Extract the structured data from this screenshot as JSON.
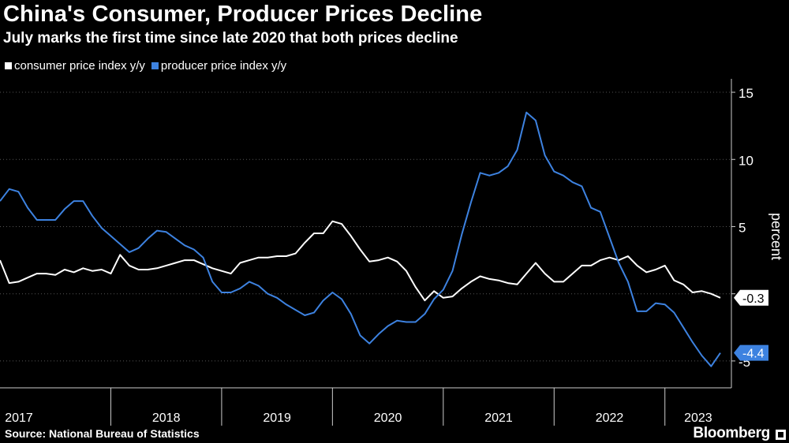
{
  "header": {
    "title": "China's Consumer, Producer Prices Decline",
    "subtitle": "July marks the first time since late 2020 that both prices decline"
  },
  "legend": {
    "cpi_label": "consumer price index y/y",
    "ppi_label": "producer price index y/y"
  },
  "colors": {
    "cpi": "#ffffff",
    "ppi": "#3d82e0",
    "axis": "#cccccc",
    "grid": "#555555",
    "bg": "#000000"
  },
  "footer": {
    "source": "Source: National Bureau of Statistics",
    "brand": "Bloomberg"
  },
  "chart_data": {
    "type": "line",
    "title": "China's Consumer, Producer Prices Decline",
    "ylabel": "percent",
    "ylim": [
      -7,
      16
    ],
    "yticks": [
      -5,
      0,
      5,
      10,
      15
    ],
    "xlim": [
      2017.0,
      2023.6
    ],
    "year_labels": [
      {
        "year": 2017,
        "label": "2017"
      },
      {
        "year": 2018,
        "label": "2018"
      },
      {
        "year": 2019,
        "label": "2019"
      },
      {
        "year": 2020,
        "label": "2020"
      },
      {
        "year": 2021,
        "label": "2021"
      },
      {
        "year": 2022,
        "label": "2022"
      },
      {
        "year": 2023,
        "label": "2023"
      }
    ],
    "start": "2017-01",
    "series": [
      {
        "name": "consumer price index y/y",
        "key": "cpi",
        "last_label": "-0.3",
        "values": [
          2.5,
          0.8,
          0.9,
          1.2,
          1.5,
          1.5,
          1.4,
          1.8,
          1.6,
          1.9,
          1.7,
          1.8,
          1.5,
          2.9,
          2.1,
          1.8,
          1.8,
          1.9,
          2.1,
          2.3,
          2.5,
          2.5,
          2.2,
          1.9,
          1.7,
          1.5,
          2.3,
          2.5,
          2.7,
          2.7,
          2.8,
          2.8,
          3.0,
          3.8,
          4.5,
          4.5,
          5.4,
          5.2,
          4.3,
          3.3,
          2.4,
          2.5,
          2.7,
          2.4,
          1.7,
          0.5,
          -0.5,
          0.2,
          -0.3,
          -0.2,
          0.4,
          0.9,
          1.3,
          1.1,
          1.0,
          0.8,
          0.7,
          1.5,
          2.3,
          1.5,
          0.9,
          0.9,
          1.5,
          2.1,
          2.1,
          2.5,
          2.7,
          2.5,
          2.8,
          2.1,
          1.6,
          1.8,
          2.1,
          1.0,
          0.7,
          0.1,
          0.2,
          0.0,
          -0.3
        ]
      },
      {
        "name": "producer price index y/y",
        "key": "ppi",
        "last_label": "-4.4",
        "values": [
          6.9,
          7.8,
          7.6,
          6.4,
          5.5,
          5.5,
          5.5,
          6.3,
          6.9,
          6.9,
          5.8,
          4.9,
          4.3,
          3.7,
          3.1,
          3.4,
          4.1,
          4.7,
          4.6,
          4.1,
          3.6,
          3.3,
          2.7,
          0.9,
          0.1,
          0.1,
          0.4,
          0.9,
          0.6,
          0.0,
          -0.3,
          -0.8,
          -1.2,
          -1.6,
          -1.4,
          -0.5,
          0.1,
          -0.4,
          -1.5,
          -3.1,
          -3.7,
          -3.0,
          -2.4,
          -2.0,
          -2.1,
          -2.1,
          -1.5,
          -0.4,
          0.3,
          1.7,
          4.4,
          6.8,
          9.0,
          8.8,
          9.0,
          9.5,
          10.7,
          13.5,
          12.9,
          10.3,
          9.1,
          8.8,
          8.3,
          8.0,
          6.4,
          6.1,
          4.2,
          2.3,
          0.9,
          -1.3,
          -1.3,
          -0.7,
          -0.8,
          -1.4,
          -2.5,
          -3.6,
          -4.6,
          -5.4,
          -4.4
        ]
      }
    ]
  }
}
